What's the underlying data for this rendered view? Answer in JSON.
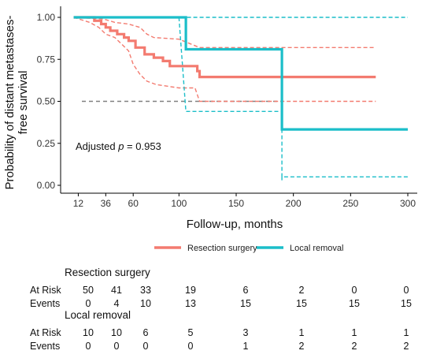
{
  "chart_data": {
    "type": "line",
    "chart_kind": "kaplan-meier survival curves with 95% confidence bands",
    "xlabel": "Follow-up, months",
    "ylabel_lines": [
      "Probability of distant metastases-",
      "free survival"
    ],
    "x_ticks": [
      12,
      36,
      60,
      100,
      150,
      200,
      250,
      300
    ],
    "y_ticks": [
      0.0,
      0.25,
      0.5,
      0.75,
      1.0
    ],
    "y_tick_labels": [
      "0.00",
      "0.25",
      "0.50",
      "0.75",
      "1.00"
    ],
    "xlim": [
      0,
      300
    ],
    "ylim": [
      0,
      1
    ],
    "grid": false,
    "annotation": {
      "prefix": "Adjusted ",
      "italic": "p",
      "suffix": " = 0.953"
    },
    "median_reference": {
      "y": 0.5,
      "x_range": [
        0,
        190
      ],
      "color": "#808080",
      "style": "dashed"
    },
    "legend_position": "bottom-center",
    "series": [
      {
        "name": "Resection surgery",
        "color": "#f37b70",
        "end_x": 272,
        "steps": [
          [
            0,
            1.0
          ],
          [
            26,
            0.98
          ],
          [
            32,
            0.96
          ],
          [
            36,
            0.94
          ],
          [
            40,
            0.92
          ],
          [
            46,
            0.9
          ],
          [
            52,
            0.88
          ],
          [
            56,
            0.86
          ],
          [
            62,
            0.82
          ],
          [
            70,
            0.78
          ],
          [
            78,
            0.76
          ],
          [
            86,
            0.74
          ],
          [
            92,
            0.71
          ],
          [
            100,
            0.71
          ],
          [
            116,
            0.68
          ],
          [
            118,
            0.645
          ],
          [
            272,
            0.645
          ]
        ],
        "ci_lower": [
          [
            0,
            1.0
          ],
          [
            22,
            0.97
          ],
          [
            30,
            0.94
          ],
          [
            36,
            0.9
          ],
          [
            44,
            0.88
          ],
          [
            50,
            0.84
          ],
          [
            56,
            0.8
          ],
          [
            60,
            0.72
          ],
          [
            66,
            0.66
          ],
          [
            72,
            0.62
          ],
          [
            80,
            0.6
          ],
          [
            100,
            0.58
          ],
          [
            114,
            0.58
          ],
          [
            118,
            0.5
          ],
          [
            272,
            0.5
          ]
        ],
        "ci_upper": [
          [
            0,
            1.0
          ],
          [
            34,
            0.99
          ],
          [
            44,
            0.97
          ],
          [
            56,
            0.96
          ],
          [
            66,
            0.94
          ],
          [
            72,
            0.9
          ],
          [
            78,
            0.88
          ],
          [
            100,
            0.87
          ],
          [
            118,
            0.82
          ],
          [
            272,
            0.82
          ]
        ]
      },
      {
        "name": "Local removal",
        "color": "#1bbec9",
        "end_x": 300,
        "steps": [
          [
            0,
            1.0
          ],
          [
            106,
            1.0
          ],
          [
            106,
            0.81
          ],
          [
            190,
            0.81
          ],
          [
            190,
            0.333
          ],
          [
            300,
            0.333
          ]
        ],
        "ci_lower": [
          [
            100,
            1.0
          ],
          [
            106,
            0.44
          ],
          [
            190,
            0.44
          ],
          [
            190,
            0.03
          ],
          [
            190,
            0.05
          ],
          [
            300,
            0.05
          ]
        ],
        "ci_upper": [
          [
            0,
            1.0
          ],
          [
            300,
            1.0
          ]
        ]
      }
    ],
    "risk_table": {
      "times": [
        12,
        36,
        60,
        100,
        150,
        200,
        250,
        300
      ],
      "row_labels": [
        "At Risk",
        "Events"
      ],
      "groups": [
        {
          "name": "Resection surgery",
          "at_risk": [
            "50",
            "41",
            "33",
            "19",
            "6",
            "2",
            "0",
            "0"
          ],
          "events": [
            "0",
            "4",
            "10",
            "13",
            "15",
            "15",
            "15",
            "15"
          ]
        },
        {
          "name": "Local removal",
          "at_risk": [
            "10",
            "10",
            "6",
            "5",
            "3",
            "1",
            "1",
            "1"
          ],
          "events": [
            "0",
            "0",
            "0",
            "0",
            "1",
            "2",
            "2",
            "2"
          ]
        }
      ]
    }
  }
}
